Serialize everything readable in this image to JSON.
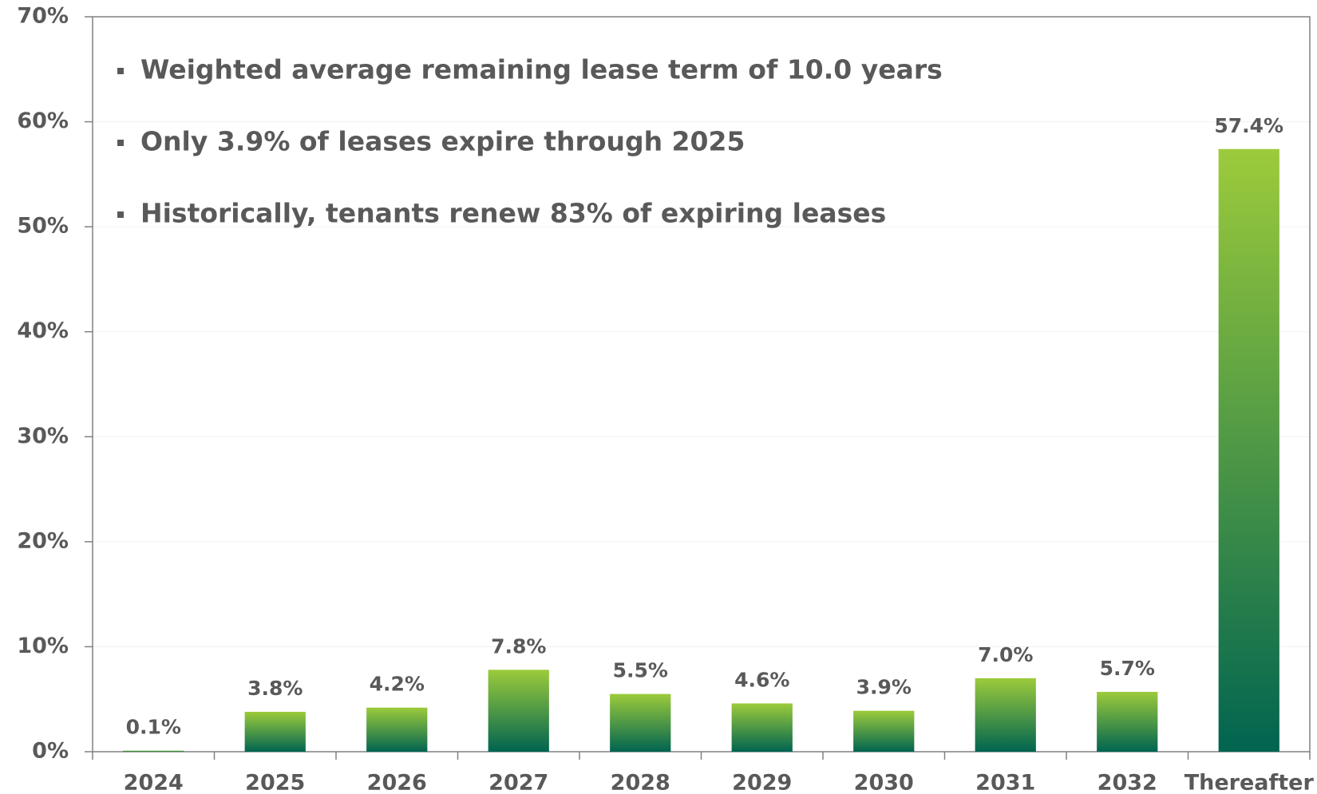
{
  "chart_data": {
    "type": "bar",
    "categories": [
      "2024",
      "2025",
      "2026",
      "2027",
      "2028",
      "2029",
      "2030",
      "2031",
      "2032",
      "Thereafter"
    ],
    "values": [
      0.1,
      3.8,
      4.2,
      7.8,
      5.5,
      4.6,
      3.9,
      7.0,
      5.7,
      57.4
    ],
    "value_labels": [
      "0.1%",
      "3.8%",
      "4.2%",
      "7.8%",
      "5.5%",
      "4.6%",
      "3.9%",
      "7.0%",
      "5.7%",
      "57.4%"
    ],
    "color": [
      "#9ccb3b",
      "#006450"
    ],
    "ylim": [
      0,
      70
    ],
    "yticks": [
      {
        "value": 0,
        "label": "0%"
      },
      {
        "value": 10,
        "label": "10%"
      },
      {
        "value": 20,
        "label": "20%"
      },
      {
        "value": 30,
        "label": "30%"
      },
      {
        "value": 40,
        "label": "40%"
      },
      {
        "value": 50,
        "label": "50%"
      },
      {
        "value": 60,
        "label": "60%"
      },
      {
        "value": 70,
        "label": "70%"
      }
    ],
    "grid": true,
    "annotations": [
      "Weighted average remaining lease term of 10.0 years",
      "Only 3.9% of leases expire through 2025",
      "Historically, tenants renew 83% of expiring leases"
    ]
  }
}
